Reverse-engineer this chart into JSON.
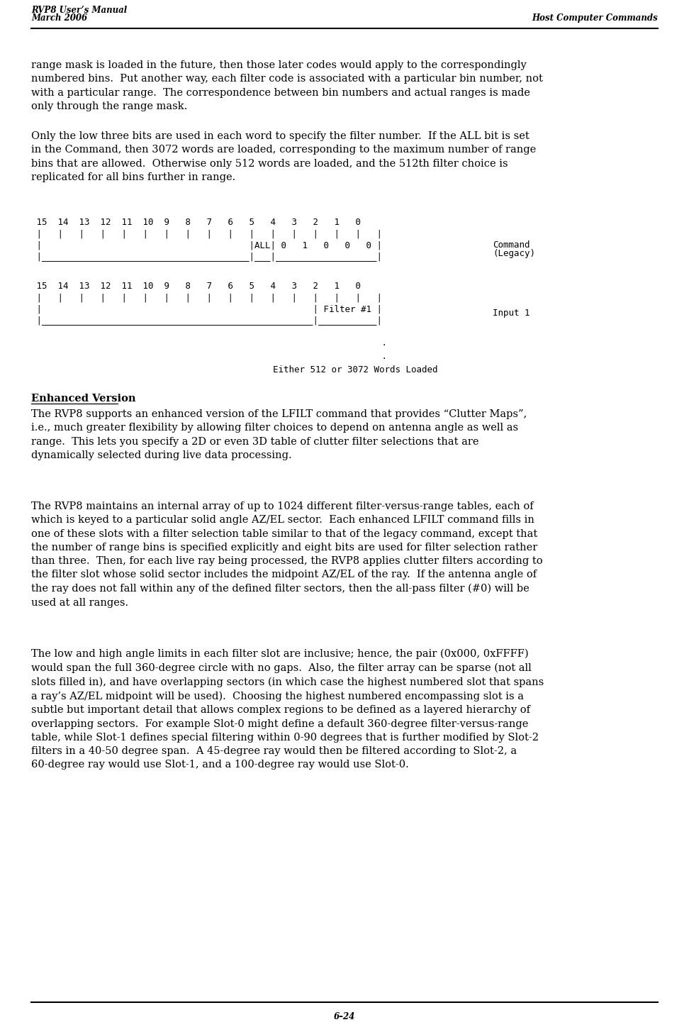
{
  "header_left_line1": "RVP8 User’s Manual",
  "header_left_line2": "March 2006",
  "header_right": "Host Computer Commands",
  "footer_center": "6–24",
  "para1": "range mask is loaded in the future, then those later codes would apply to the correspondingly\nnumbered bins.  Put another way, each filter code is associated with a particular bin number, not\nwith a particular range.  The correspondence between bin numbers and actual ranges is made\nonly through the range mask.",
  "para2": "Only the low three bits are used in each word to specify the filter number.  If the ALL bit is set\nin the Command, then 3072 words are loaded, corresponding to the maximum number of range\nbins that are allowed.  Otherwise only 512 words are loaded, and the 512th filter choice is\nreplicated for all bins further in range.",
  "enhanced_title": "Enhanced Version",
  "para3": "The RVP8 supports an enhanced version of the LFILT command that provides “Clutter Maps”,\ni.e., much greater flexibility by allowing filter choices to depend on antenna angle as well as\nrange.  This lets you specify a 2D or even 3D table of clutter filter selections that are\ndynamically selected during live data processing.",
  "para4": "The RVP8 maintains an internal array of up to 1024 different filter-versus-range tables, each of\nwhich is keyed to a particular solid angle AZ/EL sector.  Each enhanced LFILT command fills in\none of these slots with a filter selection table similar to that of the legacy command, except that\nthe number of range bins is specified explicitly and eight bits are used for filter selection rather\nthan three.  Then, for each live ray being processed, the RVP8 applies clutter filters according to\nthe filter slot whose solid sector includes the midpoint AZ/EL of the ray.  If the antenna angle of\nthe ray does not fall within any of the defined filter sectors, then the all-pass filter (#0) will be\nused at all ranges.",
  "para5": "The low and high angle limits in each filter slot are inclusive; hence, the pair (0x000, 0xFFFF)\nwould span the full 360-degree circle with no gaps.  Also, the filter array can be sparse (not all\nslots filled in), and have overlapping sectors (in which case the highest numbered slot that spans\na ray’s AZ/EL midpoint will be used).  Choosing the highest numbered encompassing slot is a\nsubtle but important detail that allows complex regions to be defined as a layered hierarchy of\noverlapping sectors.  For example Slot-0 might define a default 360-degree filter-versus-range\ntable, while Slot-1 defines special filtering within 0-90 degrees that is further modified by Slot-2\nfilters in a 40-50 degree span.  A 45-degree ray would then be filtered according to Slot-2, a\n60-degree ray would use Slot-1, and a 100-degree ray would use Slot-0.",
  "diag1_numbers": " 15  14  13  12  11  10  9   8   7   6   5   4   3   2   1   0",
  "diag1_row1": " |   |   |   |   |   |   |   |   |   |   |   |   |   |   |   |   |",
  "diag1_row2": " |                                       |ALL| 0   1   0   0   0 |",
  "diag1_row3": " |_______________________________________|___|___________________|",
  "diag1_label1": "Command",
  "diag1_label2": "(Legacy)",
  "diag2_numbers": " 15  14  13  12  11  10  9   8   7   6   5   4   3   2   1   0",
  "diag2_row1": " |   |   |   |   |   |   |   |   |   |   |   |   |   |   |   |   |",
  "diag2_row2": " |                                                   | Filter #1 |",
  "diag2_row3": " |___________________________________________________|___________|",
  "diag2_label": "Input 1",
  "dots": "               .\n               .\n    Either 512 or 3072 Words Loaded"
}
